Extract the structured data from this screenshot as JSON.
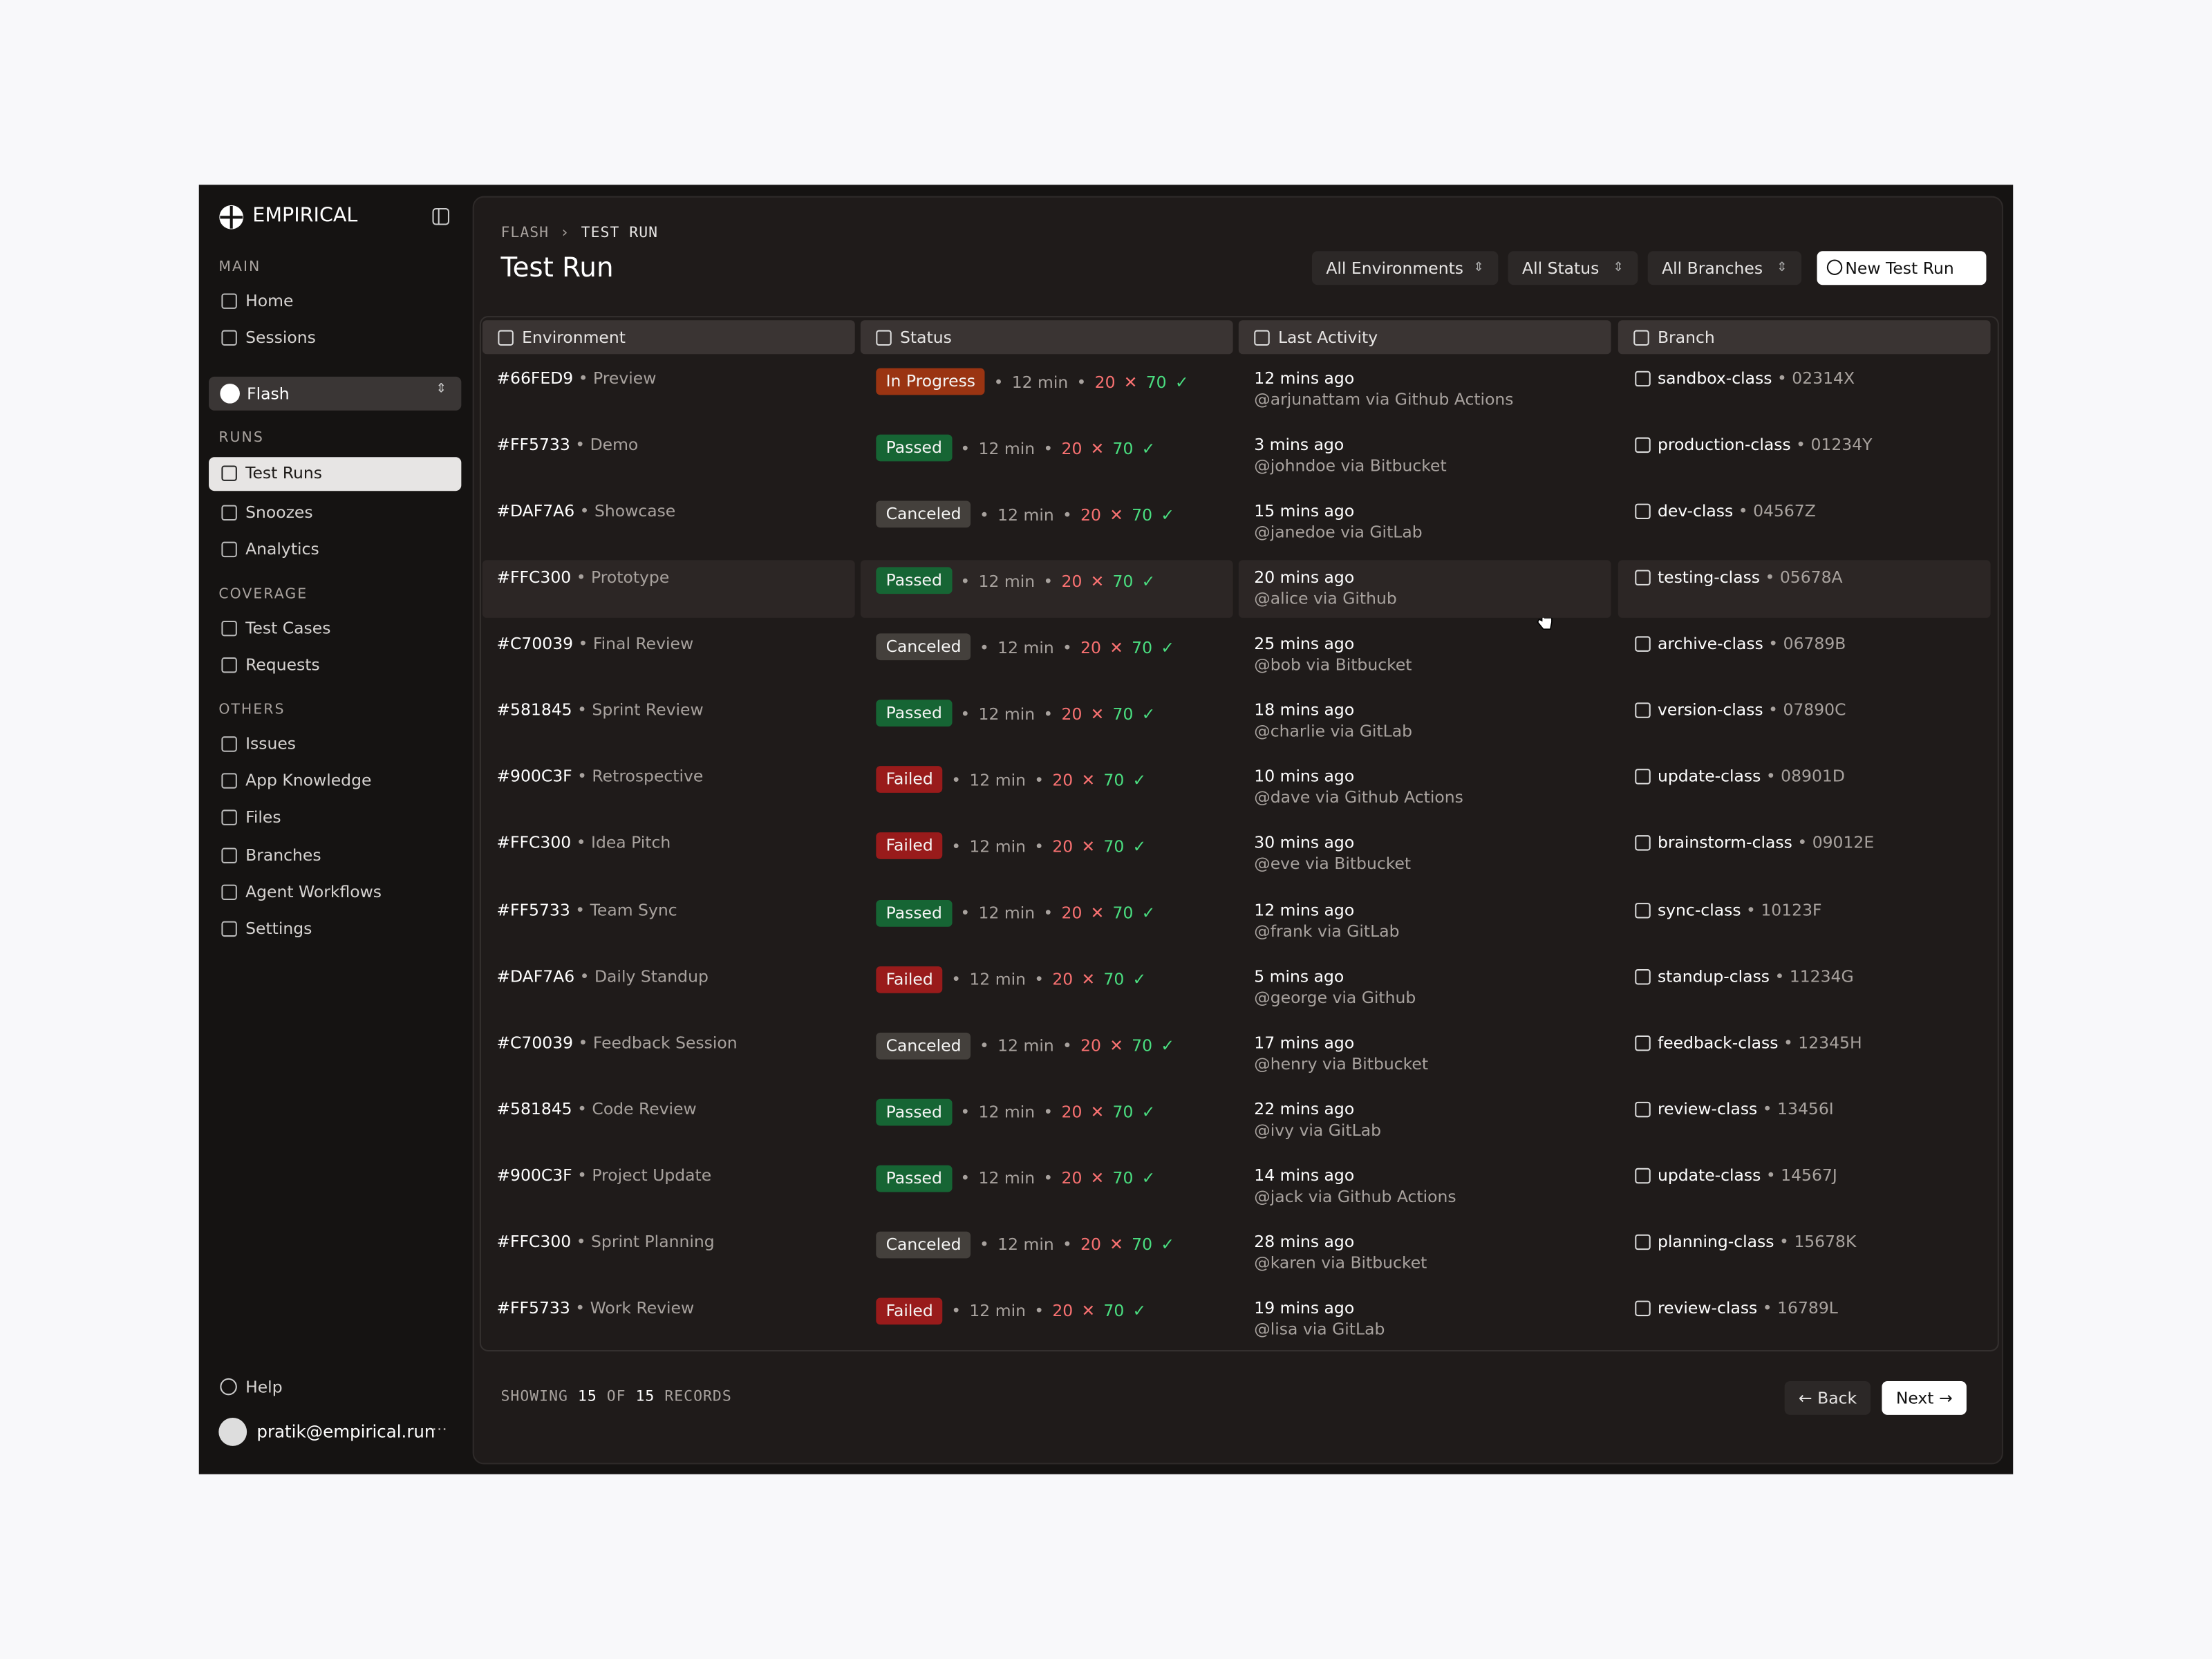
{
  "app": {
    "brand": "EMPIRICAL",
    "sidebar": [
      {
        "section": "MAIN",
        "items": [
          "Home",
          "Sessions"
        ]
      },
      {
        "section": "RUNS",
        "items": [
          "Test Runs",
          "Snoozes",
          "Analytics"
        ]
      },
      {
        "section": "COVERAGE",
        "items": [
          "Test Cases",
          "Requests"
        ]
      },
      {
        "section": "OTHERS",
        "items": [
          "Issues",
          "App Knowledge",
          "Files",
          "Branches",
          "Agent Workflows",
          "Settings"
        ]
      }
    ],
    "project": "Flash",
    "active_item": "Test Runs",
    "help": "Help",
    "user": "pratik@empirical.run"
  },
  "header": {
    "breadcrumb": [
      "FLASH",
      "TEST RUN"
    ],
    "title": "Test Run",
    "filters": [
      "All Environments",
      "All Status",
      "All Branches"
    ],
    "primary_action": "New Test Run"
  },
  "table": {
    "columns": [
      "Environment",
      "Status",
      "Last Activity",
      "Branch"
    ],
    "rows": [
      {
        "env_id": "#66FED9",
        "env_name": "Preview",
        "status": "In Progress",
        "status_color": "#9a3412",
        "duration": "12 min",
        "failed": "20",
        "passed": "70",
        "time": "12 mins ago",
        "actor": "@arjunattam via Github Actions",
        "branch": "sandbox-class",
        "commit": "02314X"
      },
      {
        "env_id": "#FF5733",
        "env_name": "Demo",
        "status": "Passed",
        "status_color": "#166534",
        "duration": "12 min",
        "failed": "20",
        "passed": "70",
        "time": "3 mins ago",
        "actor": "@johndoe via Bitbucket",
        "branch": "production-class",
        "commit": "01234Y"
      },
      {
        "env_id": "#DAF7A6",
        "env_name": "Showcase",
        "status": "Canceled",
        "status_color": "#44403c",
        "duration": "12 min",
        "failed": "20",
        "passed": "70",
        "time": "15 mins ago",
        "actor": "@janedoe via GitLab",
        "branch": "dev-class",
        "commit": "04567Z"
      },
      {
        "env_id": "#FFC300",
        "env_name": "Prototype",
        "status": "Passed",
        "status_color": "#166534",
        "duration": "12 min",
        "failed": "20",
        "passed": "70",
        "time": "20 mins ago",
        "actor": "@alice via Github",
        "branch": "testing-class",
        "commit": "05678A"
      },
      {
        "env_id": "#C70039",
        "env_name": "Final Review",
        "status": "Canceled",
        "status_color": "#44403c",
        "duration": "12 min",
        "failed": "20",
        "passed": "70",
        "time": "25 mins ago",
        "actor": "@bob via Bitbucket",
        "branch": "archive-class",
        "commit": "06789B"
      },
      {
        "env_id": "#581845",
        "env_name": "Sprint Review",
        "status": "Passed",
        "status_color": "#166534",
        "duration": "12 min",
        "failed": "20",
        "passed": "70",
        "time": "18 mins ago",
        "actor": "@charlie via GitLab",
        "branch": "version-class",
        "commit": "07890C"
      },
      {
        "env_id": "#900C3F",
        "env_name": "Retrospective",
        "status": "Failed",
        "status_color": "#991b1b",
        "duration": "12 min",
        "failed": "20",
        "passed": "70",
        "time": "10 mins ago",
        "actor": "@dave via Github Actions",
        "branch": "update-class",
        "commit": "08901D"
      },
      {
        "env_id": "#FFC300",
        "env_name": "Idea Pitch",
        "status": "Failed",
        "status_color": "#991b1b",
        "duration": "12 min",
        "failed": "20",
        "passed": "70",
        "time": "30 mins ago",
        "actor": "@eve via Bitbucket",
        "branch": "brainstorm-class",
        "commit": "09012E"
      },
      {
        "env_id": "#FF5733",
        "env_name": "Team Sync",
        "status": "Passed",
        "status_color": "#166534",
        "duration": "12 min",
        "failed": "20",
        "passed": "70",
        "time": "12 mins ago",
        "actor": "@frank via GitLab",
        "branch": "sync-class",
        "commit": "10123F"
      },
      {
        "env_id": "#DAF7A6",
        "env_name": "Daily Standup",
        "status": "Failed",
        "status_color": "#991b1b",
        "duration": "12 min",
        "failed": "20",
        "passed": "70",
        "time": "5 mins ago",
        "actor": "@george via Github",
        "branch": "standup-class",
        "commit": "11234G"
      },
      {
        "env_id": "#C70039",
        "env_name": "Feedback Session",
        "status": "Canceled",
        "status_color": "#44403c",
        "duration": "12 min",
        "failed": "20",
        "passed": "70",
        "time": "17 mins ago",
        "actor": "@henry via Bitbucket",
        "branch": "feedback-class",
        "commit": "12345H"
      },
      {
        "env_id": "#581845",
        "env_name": "Code Review",
        "status": "Passed",
        "status_color": "#166534",
        "duration": "12 min",
        "failed": "20",
        "passed": "70",
        "time": "22 mins ago",
        "actor": "@ivy via GitLab",
        "branch": "review-class",
        "commit": "13456I"
      },
      {
        "env_id": "#900C3F",
        "env_name": "Project Update",
        "status": "Passed",
        "status_color": "#166534",
        "duration": "12 min",
        "failed": "20",
        "passed": "70",
        "time": "14 mins ago",
        "actor": "@jack via Github Actions",
        "branch": "update-class",
        "commit": "14567J"
      },
      {
        "env_id": "#FFC300",
        "env_name": "Sprint Planning",
        "status": "Canceled",
        "status_color": "#44403c",
        "duration": "12 min",
        "failed": "20",
        "passed": "70",
        "time": "28 mins ago",
        "actor": "@karen via Bitbucket",
        "branch": "planning-class",
        "commit": "15678K"
      },
      {
        "env_id": "#FF5733",
        "env_name": "Work Review",
        "status": "Failed",
        "status_color": "#991b1b",
        "duration": "12 min",
        "failed": "20",
        "passed": "70",
        "time": "19 mins ago",
        "actor": "@lisa via GitLab",
        "branch": "review-class",
        "commit": "16789L"
      }
    ]
  },
  "footer": {
    "showing": "SHOWING",
    "shown": "15",
    "of": "OF",
    "total": "15",
    "records": "RECORDS",
    "back": "Back",
    "next": "Next"
  }
}
